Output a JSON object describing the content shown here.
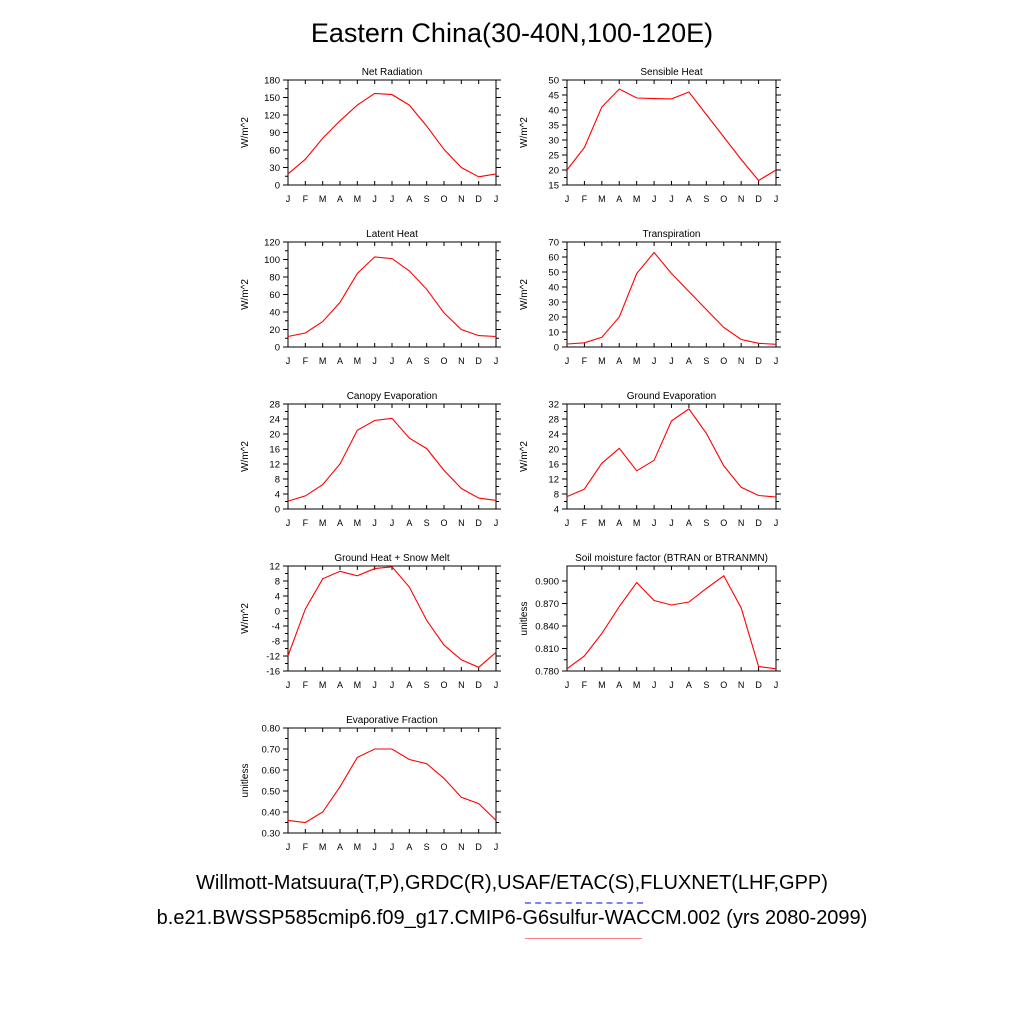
{
  "figure": {
    "title": "Eastern China(30-40N,100-120E)",
    "footer_line1": "Willmott-Matsuura(T,P),GRDC(R),USAF/ETAC(S),FLUXNET(LHF,GPP)",
    "footer_line2": "b.e21.BWSSP585cmip6.f09_g17.CMIP6-G6sulfur-WACCM.002 (yrs 2080-2099)",
    "line_color": "#ff0000",
    "legend_dash_color": "#8080ff",
    "legend_solid_color": "#ff8080"
  },
  "chart_data": [
    {
      "type": "line",
      "title": "Net Radiation",
      "ylabel": "W/m^2",
      "categories": [
        "J",
        "F",
        "M",
        "A",
        "M",
        "J",
        "J",
        "A",
        "S",
        "O",
        "N",
        "D",
        "J"
      ],
      "values": [
        19,
        44,
        80,
        110,
        137,
        157,
        155,
        137,
        101,
        61,
        30,
        14,
        19
      ],
      "ylim": [
        0,
        180
      ],
      "yticks": [
        "0",
        "30",
        "60",
        "90",
        "120",
        "150",
        "180"
      ],
      "grid": false
    },
    {
      "type": "line",
      "title": "Sensible Heat",
      "ylabel": "W/m^2",
      "categories": [
        "J",
        "F",
        "M",
        "A",
        "M",
        "J",
        "J",
        "A",
        "S",
        "O",
        "N",
        "D",
        "J"
      ],
      "values": [
        20,
        27.5,
        41,
        47,
        44,
        43.8,
        43.7,
        46,
        38.5,
        31,
        23.5,
        16.5,
        20
      ],
      "ylim": [
        15,
        50
      ],
      "yticks": [
        "15",
        "20",
        "25",
        "30",
        "35",
        "40",
        "45",
        "50"
      ],
      "grid": false
    },
    {
      "type": "line",
      "title": "Latent Heat",
      "ylabel": "W/m^2",
      "categories": [
        "J",
        "F",
        "M",
        "A",
        "M",
        "J",
        "J",
        "A",
        "S",
        "O",
        "N",
        "D",
        "J"
      ],
      "values": [
        12,
        16,
        29,
        51,
        84,
        103,
        101,
        87,
        66,
        39,
        20,
        13,
        12
      ],
      "ylim": [
        0,
        120
      ],
      "yticks": [
        "0",
        "20",
        "40",
        "60",
        "80",
        "100",
        "120"
      ],
      "grid": false
    },
    {
      "type": "line",
      "title": "Transpiration",
      "ylabel": "W/m^2",
      "categories": [
        "J",
        "F",
        "M",
        "A",
        "M",
        "J",
        "J",
        "A",
        "S",
        "O",
        "N",
        "D",
        "J"
      ],
      "values": [
        2,
        2.8,
        6.5,
        20,
        49,
        63,
        49,
        37,
        25,
        13,
        5,
        2.5,
        1.8
      ],
      "ylim": [
        0,
        70
      ],
      "yticks": [
        "0",
        "10",
        "20",
        "30",
        "40",
        "50",
        "60",
        "70"
      ],
      "grid": false
    },
    {
      "type": "line",
      "title": "Canopy Evaporation",
      "ylabel": "W/m^2",
      "categories": [
        "J",
        "F",
        "M",
        "A",
        "M",
        "J",
        "J",
        "A",
        "S",
        "O",
        "N",
        "D",
        "J"
      ],
      "values": [
        2.1,
        3.5,
        6.5,
        12,
        21,
        23.6,
        24.2,
        18.9,
        16.1,
        10.3,
        5.5,
        2.9,
        2.3
      ],
      "ylim": [
        0,
        28
      ],
      "yticks": [
        "0",
        "4",
        "8",
        "12",
        "16",
        "20",
        "24",
        "28"
      ],
      "grid": false
    },
    {
      "type": "line",
      "title": "Ground Evaporation",
      "ylabel": "W/m^2",
      "categories": [
        "J",
        "F",
        "M",
        "A",
        "M",
        "J",
        "J",
        "A",
        "S",
        "O",
        "N",
        "D",
        "J"
      ],
      "values": [
        7.3,
        9.3,
        16.2,
        20.2,
        14.2,
        17,
        27.5,
        30.7,
        24.2,
        15.5,
        9.8,
        7.6,
        7.2
      ],
      "ylim": [
        4,
        32
      ],
      "yticks": [
        "4",
        "8",
        "12",
        "16",
        "20",
        "24",
        "28",
        "32"
      ],
      "grid": false
    },
    {
      "type": "line",
      "title": "Ground Heat + Snow Melt",
      "ylabel": "W/m^2",
      "categories": [
        "J",
        "F",
        "M",
        "A",
        "M",
        "J",
        "J",
        "A",
        "S",
        "O",
        "N",
        "D",
        "J"
      ],
      "values": [
        -12,
        0.5,
        8.6,
        10.6,
        9.4,
        11.3,
        11.8,
        6.4,
        -2.5,
        -9.1,
        -13,
        -15,
        -11
      ],
      "ylim": [
        -16,
        12
      ],
      "yticks": [
        "-16",
        "-12",
        "-8",
        "-4",
        "0",
        "4",
        "8",
        "12"
      ],
      "grid": false
    },
    {
      "type": "line",
      "title": "Soil moisture factor (BTRAN or BTRANMN)",
      "ylabel": "unitless",
      "categories": [
        "J",
        "F",
        "M",
        "A",
        "M",
        "J",
        "J",
        "A",
        "S",
        "O",
        "N",
        "D",
        "J"
      ],
      "values": [
        0.783,
        0.8,
        0.83,
        0.866,
        0.898,
        0.874,
        0.868,
        0.872,
        0.89,
        0.907,
        0.864,
        0.786,
        0.783
      ],
      "ylim": [
        0.78,
        0.92
      ],
      "yticks": [
        "0.780",
        "0.810",
        "0.840",
        "0.870",
        "0.900"
      ],
      "ytick_values": [
        0.78,
        0.81,
        0.84,
        0.87,
        0.9
      ],
      "grid": false
    },
    {
      "type": "line",
      "title": "Evaporative Fraction",
      "ylabel": "unitless",
      "categories": [
        "J",
        "F",
        "M",
        "A",
        "M",
        "J",
        "J",
        "A",
        "S",
        "O",
        "N",
        "D",
        "J"
      ],
      "values": [
        0.36,
        0.35,
        0.4,
        0.52,
        0.66,
        0.7,
        0.7,
        0.65,
        0.63,
        0.56,
        0.47,
        0.44,
        0.36
      ],
      "ylim": [
        0.3,
        0.8
      ],
      "yticks": [
        "0.30",
        "0.40",
        "0.50",
        "0.60",
        "0.70",
        "0.80"
      ],
      "grid": false
    }
  ]
}
